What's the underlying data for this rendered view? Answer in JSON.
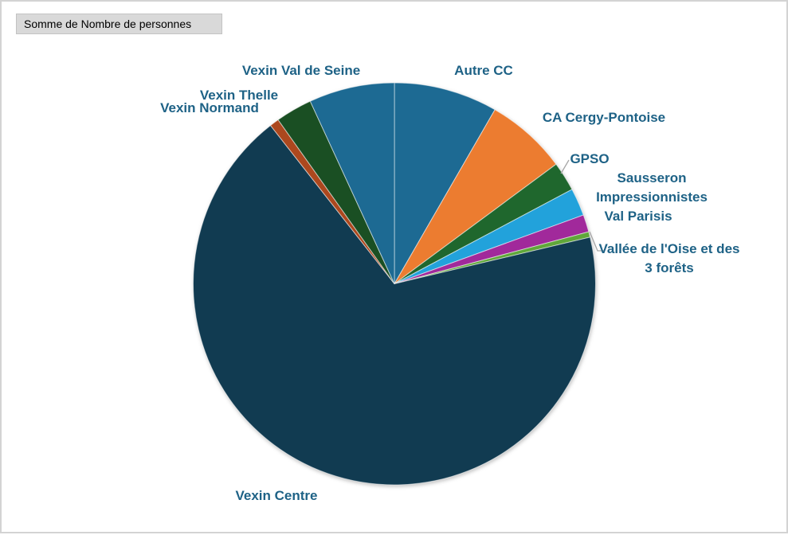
{
  "window": {
    "background": "#ffffff",
    "border_color": "#d3d3d3"
  },
  "pivot_field_button": {
    "label": "Somme de Nombre de personnes",
    "bg": "#d9d9d9",
    "border": "#c3c3c3",
    "text_color": "#000000"
  },
  "chart_data": {
    "type": "pie",
    "title": "Somme de Nombre de personnes",
    "legend": "none",
    "labels_position": "outside-end",
    "start_angle_deg": 0,
    "direction": "clockwise",
    "label_color": "#1e6286",
    "leader_line_color": "#a6a6a6",
    "slices": [
      {
        "label": "Autre CC",
        "percent": 8.33,
        "color": "#1d6a93"
      },
      {
        "label": "CA Cergy-Pontoise",
        "percent": 6.53,
        "color": "#ec7c30"
      },
      {
        "label": "GPSO",
        "percent": 2.36,
        "color": "#1f672d"
      },
      {
        "label": "Sausseron Impressionnistes",
        "percent": 2.22,
        "color": "#22a2db"
      },
      {
        "label": "Val Parisis",
        "percent": 1.39,
        "color": "#a1299b"
      },
      {
        "label": "Vallée de l'Oise et des 3 forêts",
        "percent": 0.44,
        "color": "#60a73a"
      },
      {
        "label": "Vexin Centre",
        "percent": 68.17,
        "color": "#113b51"
      },
      {
        "label": "Vexin Normand",
        "percent": 0.75,
        "color": "#ac481e"
      },
      {
        "label": "Vexin Thelle",
        "percent": 2.94,
        "color": "#1a4f23"
      },
      {
        "label": "Vexin Val de Seine",
        "percent": 6.87,
        "color": "#1d6a93"
      }
    ]
  }
}
